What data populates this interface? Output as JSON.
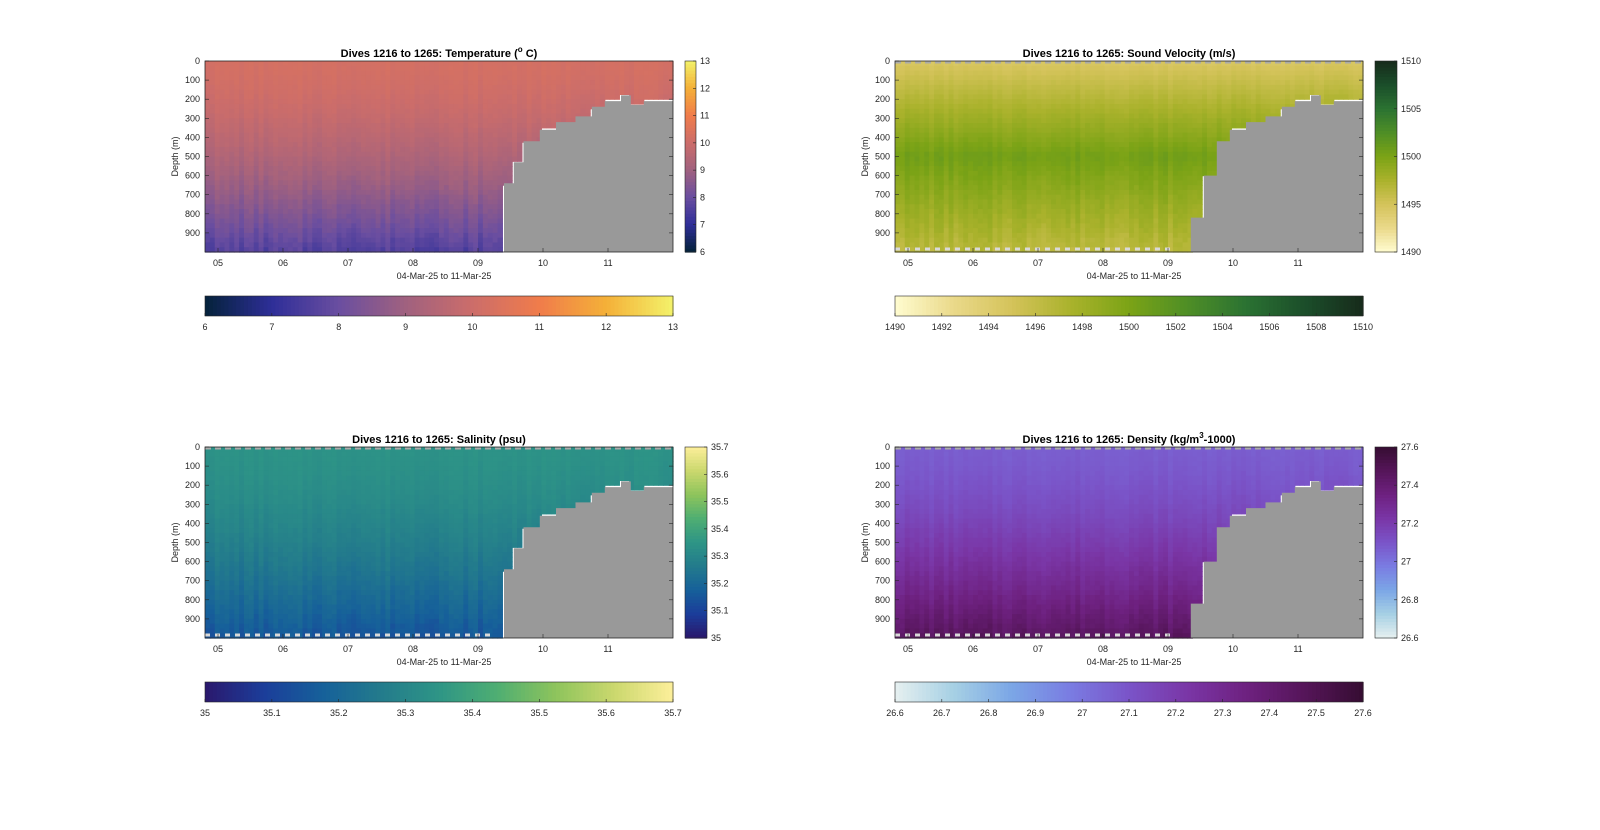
{
  "figure": {
    "background": "#ffffff",
    "mask_color": "#999999"
  },
  "chart_data": [
    {
      "type": "heatmap",
      "title": "Dives 1216 to 1265: Temperature (° C)",
      "title_parts": [
        "Dives 1216 to 1265: Temperature (",
        "o",
        " C)"
      ],
      "title_style": "superscript",
      "xlabel": "04-Mar-25 to 11-Mar-25",
      "ylabel": "Depth (m)",
      "x_tick_labels": [
        "05",
        "06",
        "07",
        "08",
        "09",
        "10",
        "11"
      ],
      "x_tick_values": [
        5,
        6,
        7,
        8,
        9,
        10,
        11
      ],
      "xlim": [
        4.8,
        12
      ],
      "y_tick_labels": [
        "0",
        "100",
        "200",
        "300",
        "400",
        "500",
        "600",
        "700",
        "800",
        "900"
      ],
      "y_tick_values": [
        0,
        100,
        200,
        300,
        400,
        500,
        600,
        700,
        800,
        900
      ],
      "ylim": [
        0,
        1000
      ],
      "y_reversed": true,
      "colormap": "thermal",
      "colormap_stops": [
        "#04223a",
        "#2e2e98",
        "#6a4ea0",
        "#a0617f",
        "#cc6d6a",
        "#f07c4b",
        "#f4b038",
        "#f3f26a"
      ],
      "clim": [
        6,
        13
      ],
      "colorbar_ticks": [
        "6",
        "7",
        "8",
        "9",
        "10",
        "11",
        "12",
        "13"
      ],
      "hcolorbar_ticks": [
        "6",
        "7",
        "8",
        "9",
        "10",
        "11",
        "12",
        "13"
      ],
      "surface_value": 10.2,
      "bottom_value": 7.6,
      "profile_range": [
        0,
        1000
      ],
      "seabed_depth": [
        [
          9.22,
          1000
        ],
        [
          9.4,
          640
        ],
        [
          9.55,
          530
        ],
        [
          9.7,
          420
        ],
        [
          9.95,
          360
        ],
        [
          10.2,
          320
        ],
        [
          10.5,
          290
        ],
        [
          10.75,
          240
        ],
        [
          10.95,
          210
        ],
        [
          11.2,
          180
        ],
        [
          11.35,
          230
        ],
        [
          11.55,
          210
        ],
        [
          12.0,
          200
        ]
      ],
      "surface_line": false,
      "bottom_line": false
    },
    {
      "type": "heatmap",
      "title": "Dives 1216 to 1265: Sound Velocity (m/s)",
      "title_parts": [
        "Dives 1216 to 1265: Sound Velocity (m/s)"
      ],
      "title_style": "plain",
      "xlabel": "04-Mar-25 to 11-Mar-25",
      "ylabel": "Depth (m)",
      "x_tick_labels": [
        "05",
        "06",
        "07",
        "08",
        "09",
        "10",
        "11"
      ],
      "x_tick_values": [
        5,
        6,
        7,
        8,
        9,
        10,
        11
      ],
      "xlim": [
        4.8,
        12
      ],
      "y_tick_labels": [
        "0",
        "100",
        "200",
        "300",
        "400",
        "500",
        "600",
        "700",
        "800",
        "900"
      ],
      "y_tick_values": [
        0,
        100,
        200,
        300,
        400,
        500,
        600,
        700,
        800,
        900
      ],
      "ylim": [
        0,
        1000
      ],
      "y_reversed": true,
      "colormap": "speed",
      "colormap_stops": [
        "#fffcd0",
        "#ead98a",
        "#d4c35a",
        "#aab22c",
        "#7ba316",
        "#4e8e26",
        "#2b7232",
        "#1b4e2a",
        "#172b1b"
      ],
      "clim": [
        1490,
        1510
      ],
      "colorbar_ticks": [
        "1490",
        "1495",
        "1500",
        "1505",
        "1510"
      ],
      "hcolorbar_ticks": [
        "1490",
        "1492",
        "1494",
        "1496",
        "1498",
        "1500",
        "1502",
        "1504",
        "1506",
        "1508",
        "1510"
      ],
      "surface_value": 1494.5,
      "mid_value": 1500.5,
      "bottom_value": 1496.5,
      "profile_range": [
        0,
        1000
      ],
      "seabed_depth": [
        [
          9.1,
          1000
        ],
        [
          9.35,
          820
        ],
        [
          9.55,
          600
        ],
        [
          9.75,
          420
        ],
        [
          9.95,
          360
        ],
        [
          10.2,
          320
        ],
        [
          10.5,
          290
        ],
        [
          10.75,
          240
        ],
        [
          10.95,
          210
        ],
        [
          11.2,
          180
        ],
        [
          11.35,
          230
        ],
        [
          11.55,
          210
        ],
        [
          12.0,
          200
        ]
      ],
      "surface_line": true,
      "bottom_line": true
    },
    {
      "type": "heatmap",
      "title": "Dives 1216 to 1265: Salinity (psu)",
      "title_parts": [
        "Dives 1216 to 1265: Salinity (psu)"
      ],
      "title_style": "plain",
      "xlabel": "04-Mar-25 to 11-Mar-25",
      "ylabel": "Depth (m)",
      "x_tick_labels": [
        "05",
        "06",
        "07",
        "08",
        "09",
        "10",
        "11"
      ],
      "x_tick_values": [
        5,
        6,
        7,
        8,
        9,
        10,
        11
      ],
      "xlim": [
        4.8,
        12
      ],
      "y_tick_labels": [
        "0",
        "100",
        "200",
        "300",
        "400",
        "500",
        "600",
        "700",
        "800",
        "900"
      ],
      "y_tick_values": [
        0,
        100,
        200,
        300,
        400,
        500,
        600,
        700,
        800,
        900
      ],
      "ylim": [
        0,
        1000
      ],
      "y_reversed": true,
      "colormap": "haline",
      "colormap_stops": [
        "#2a186c",
        "#1b3d9a",
        "#16609a",
        "#237b8c",
        "#2e9586",
        "#4fae72",
        "#8ec45c",
        "#cbd86e",
        "#fdef9a"
      ],
      "clim": [
        35,
        35.7
      ],
      "colorbar_ticks": [
        "35",
        "35.1",
        "35.2",
        "35.3",
        "35.4",
        "35.5",
        "35.6",
        "35.7"
      ],
      "hcolorbar_ticks": [
        "35",
        "35.1",
        "35.2",
        "35.3",
        "35.4",
        "35.5",
        "35.6",
        "35.7"
      ],
      "surface_value": 35.34,
      "bottom_value": 35.15,
      "profile_range": [
        0,
        1000
      ],
      "seabed_depth": [
        [
          9.22,
          1000
        ],
        [
          9.4,
          640
        ],
        [
          9.55,
          530
        ],
        [
          9.7,
          420
        ],
        [
          9.95,
          360
        ],
        [
          10.2,
          320
        ],
        [
          10.5,
          290
        ],
        [
          10.75,
          240
        ],
        [
          10.95,
          210
        ],
        [
          11.2,
          180
        ],
        [
          11.35,
          230
        ],
        [
          11.55,
          210
        ],
        [
          12.0,
          200
        ]
      ],
      "surface_line": true,
      "bottom_line": true
    },
    {
      "type": "heatmap",
      "title": "Dives 1216 to 1265: Density (kg/m³-1000)",
      "title_parts": [
        "Dives 1216 to 1265: Density (kg/m",
        "3",
        "-1000)"
      ],
      "title_style": "superscript",
      "xlabel": "04-Mar-25 to 11-Mar-25",
      "ylabel": "Depth (m)",
      "x_tick_labels": [
        "05",
        "06",
        "07",
        "08",
        "09",
        "10",
        "11"
      ],
      "x_tick_values": [
        5,
        6,
        7,
        8,
        9,
        10,
        11
      ],
      "xlim": [
        4.8,
        12
      ],
      "y_tick_labels": [
        "0",
        "100",
        "200",
        "300",
        "400",
        "500",
        "600",
        "700",
        "800",
        "900"
      ],
      "y_tick_values": [
        0,
        100,
        200,
        300,
        400,
        500,
        600,
        700,
        800,
        900
      ],
      "ylim": [
        0,
        1000
      ],
      "y_reversed": true,
      "colormap": "dense",
      "colormap_stops": [
        "#e6f0f0",
        "#a6d0e4",
        "#7ba6e6",
        "#7a7ce2",
        "#7a54c8",
        "#7a36a6",
        "#6e2180",
        "#551559",
        "#360d32"
      ],
      "clim": [
        26.6,
        27.6
      ],
      "colorbar_ticks": [
        "26.6",
        "26.8",
        "27",
        "27.2",
        "27.4",
        "27.6"
      ],
      "hcolorbar_ticks": [
        "26.6",
        "26.7",
        "26.8",
        "26.9",
        "27",
        "27.1",
        "27.2",
        "27.3",
        "27.4",
        "27.5",
        "27.6"
      ],
      "surface_value": 27.07,
      "bottom_value": 27.46,
      "profile_range": [
        0,
        1000
      ],
      "seabed_depth": [
        [
          9.1,
          1000
        ],
        [
          9.35,
          820
        ],
        [
          9.55,
          600
        ],
        [
          9.75,
          420
        ],
        [
          9.95,
          360
        ],
        [
          10.2,
          320
        ],
        [
          10.5,
          290
        ],
        [
          10.75,
          240
        ],
        [
          10.95,
          210
        ],
        [
          11.2,
          180
        ],
        [
          11.35,
          230
        ],
        [
          11.55,
          210
        ],
        [
          12.0,
          200
        ]
      ],
      "surface_line": true,
      "bottom_line": true
    }
  ]
}
